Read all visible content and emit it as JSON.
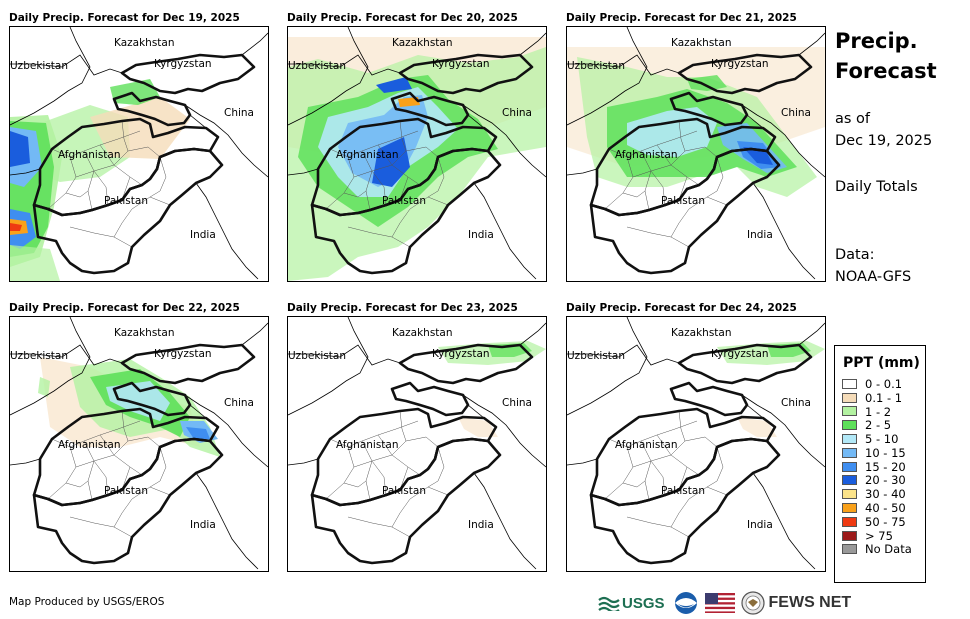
{
  "panels": [
    {
      "title": "Daily Precip. Forecast for Dec 19, 2025",
      "intensity": "heavy-west"
    },
    {
      "title": "Daily Precip. Forecast for Dec 20, 2025",
      "intensity": "heavy-central"
    },
    {
      "title": "Daily Precip. Forecast for Dec 21, 2025",
      "intensity": "moderate-east"
    },
    {
      "title": "Daily Precip. Forecast for Dec 22, 2025",
      "intensity": "light-east"
    },
    {
      "title": "Daily Precip. Forecast for Dec 23, 2025",
      "intensity": "minimal"
    },
    {
      "title": "Daily Precip. Forecast for Dec 24, 2025",
      "intensity": "minimal"
    }
  ],
  "map_labels": {
    "kazakhstan": "Kazakhstan",
    "uzbekistan": "Uzbekistan",
    "kyrgyzstan": "Kyrgyzstan",
    "china": "China",
    "afghanistan": "Afghanistan",
    "pakistan": "Pakistan",
    "india": "India"
  },
  "side": {
    "title_line1": "Precip.",
    "title_line2": "Forecast",
    "asof_line1": "as of",
    "asof_line2": "Dec 19, 2025",
    "totals": "Daily Totals",
    "data_line1": "Data:",
    "data_line2": "NOAA-GFS"
  },
  "legend": {
    "title": "PPT (mm)",
    "items": [
      {
        "label": "0 - 0.1",
        "color": "#ffffff"
      },
      {
        "label": "0.1 - 1",
        "color": "#f5dcb9"
      },
      {
        "label": "1 - 2",
        "color": "#b3f2a1"
      },
      {
        "label": "2 - 5",
        "color": "#5ee05a"
      },
      {
        "label": "5 - 10",
        "color": "#b2e8f7"
      },
      {
        "label": "10 - 15",
        "color": "#73b9f5"
      },
      {
        "label": "15 - 20",
        "color": "#3f8ef0"
      },
      {
        "label": "20 - 30",
        "color": "#1a5ddd"
      },
      {
        "label": "30 - 40",
        "color": "#fbe38a"
      },
      {
        "label": "40 - 50",
        "color": "#f9a11a"
      },
      {
        "label": "50 - 75",
        "color": "#ef3a12"
      },
      {
        "label": "> 75",
        "color": "#9c1a1a"
      },
      {
        "label": "No Data",
        "color": "#999999"
      }
    ]
  },
  "credit": "Map Produced by USGS/EROS",
  "logos": {
    "usgs": "USGS",
    "fewsnet": "FEWS NET"
  }
}
